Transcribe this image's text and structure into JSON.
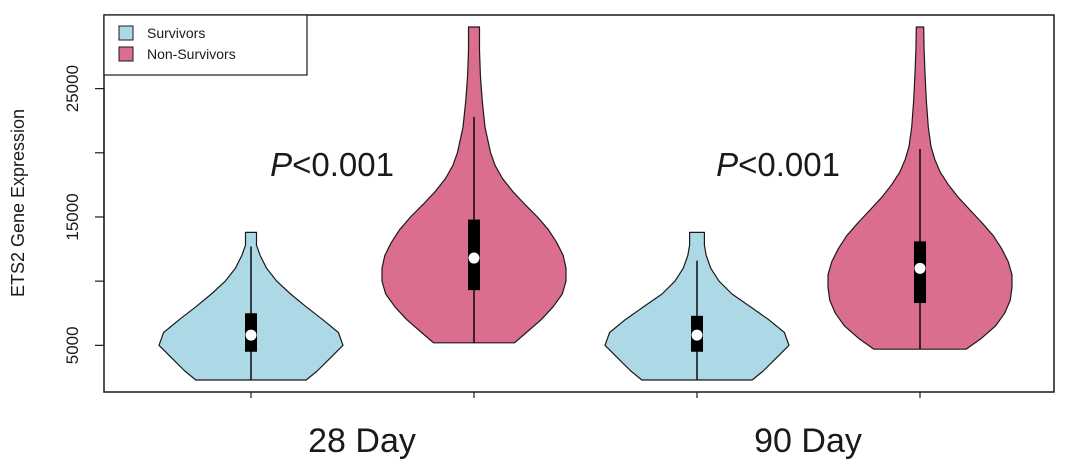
{
  "chart_data": {
    "type": "violin",
    "title": "",
    "xlabel": "",
    "ylabel": "ETS2 Gene Expression",
    "ylim": [
      2300,
      29800
    ],
    "y_ticks": [
      5000,
      15000,
      25000
    ],
    "y_tick_labels": [
      "5000",
      "15000",
      "25000"
    ],
    "categories": [
      "28 Day",
      "90 Day"
    ],
    "colors": {
      "Survivors": "#add8e6",
      "Non-Survivors": "#db6d8f"
    },
    "legend": {
      "position": "top-left",
      "entries": [
        {
          "label": "Survivors",
          "color": "#add8e6"
        },
        {
          "label": "Non-Survivors",
          "color": "#db6d8f"
        }
      ]
    },
    "annotations": [
      {
        "group": "28 Day",
        "italic": "P",
        "text": "<0.001"
      },
      {
        "group": "90 Day",
        "italic": "P",
        "text": "<0.001"
      }
    ],
    "violins": [
      {
        "group": "28 Day",
        "series": "Survivors",
        "min": 2300,
        "q1": 4500,
        "median": 5800,
        "q3": 7500,
        "max": 13800,
        "whisker_low": 2300,
        "whisker_high": 12700,
        "density": [
          [
            2300,
            0.6
          ],
          [
            3000,
            0.72
          ],
          [
            4000,
            0.86
          ],
          [
            5000,
            1.0
          ],
          [
            6000,
            0.95
          ],
          [
            7000,
            0.78
          ],
          [
            8000,
            0.6
          ],
          [
            9000,
            0.43
          ],
          [
            10000,
            0.28
          ],
          [
            11000,
            0.17
          ],
          [
            12000,
            0.1
          ],
          [
            12800,
            0.06
          ],
          [
            13800,
            0.06
          ]
        ]
      },
      {
        "group": "28 Day",
        "series": "Non-Survivors",
        "min": 5200,
        "q1": 9300,
        "median": 11800,
        "q3": 14800,
        "max": 29800,
        "whisker_low": 5200,
        "whisker_high": 22800,
        "density": [
          [
            5200,
            0.44
          ],
          [
            6000,
            0.57
          ],
          [
            7000,
            0.73
          ],
          [
            8000,
            0.86
          ],
          [
            9000,
            0.96
          ],
          [
            10000,
            1.0
          ],
          [
            11000,
            1.0
          ],
          [
            12000,
            0.97
          ],
          [
            13000,
            0.9
          ],
          [
            14000,
            0.81
          ],
          [
            15000,
            0.69
          ],
          [
            16000,
            0.55
          ],
          [
            17000,
            0.42
          ],
          [
            18000,
            0.31
          ],
          [
            19000,
            0.23
          ],
          [
            20000,
            0.18
          ],
          [
            21000,
            0.15
          ],
          [
            22000,
            0.12
          ],
          [
            24000,
            0.09
          ],
          [
            26000,
            0.07
          ],
          [
            28000,
            0.06
          ],
          [
            29800,
            0.06
          ]
        ]
      },
      {
        "group": "90 Day",
        "series": "Survivors",
        "min": 2300,
        "q1": 4500,
        "median": 5800,
        "q3": 7300,
        "max": 13800,
        "whisker_low": 2300,
        "whisker_high": 11600,
        "density": [
          [
            2300,
            0.6
          ],
          [
            3000,
            0.72
          ],
          [
            4000,
            0.86
          ],
          [
            5000,
            1.0
          ],
          [
            6000,
            0.95
          ],
          [
            7000,
            0.78
          ],
          [
            8000,
            0.58
          ],
          [
            9000,
            0.38
          ],
          [
            10000,
            0.24
          ],
          [
            11000,
            0.15
          ],
          [
            12000,
            0.1
          ],
          [
            12800,
            0.08
          ],
          [
            13800,
            0.08
          ]
        ]
      },
      {
        "group": "90 Day",
        "series": "Non-Survivors",
        "min": 4700,
        "q1": 8300,
        "median": 11000,
        "q3": 13100,
        "max": 29800,
        "whisker_low": 4700,
        "whisker_high": 20300,
        "density": [
          [
            4700,
            0.5
          ],
          [
            5500,
            0.66
          ],
          [
            6500,
            0.82
          ],
          [
            7500,
            0.92
          ],
          [
            8500,
            0.98
          ],
          [
            9500,
            1.0
          ],
          [
            10500,
            1.0
          ],
          [
            11500,
            0.96
          ],
          [
            12500,
            0.89
          ],
          [
            13500,
            0.8
          ],
          [
            14500,
            0.68
          ],
          [
            15500,
            0.55
          ],
          [
            16500,
            0.42
          ],
          [
            17500,
            0.31
          ],
          [
            18500,
            0.22
          ],
          [
            19500,
            0.16
          ],
          [
            20500,
            0.12
          ],
          [
            22000,
            0.09
          ],
          [
            24000,
            0.07
          ],
          [
            26000,
            0.055
          ],
          [
            28000,
            0.045
          ],
          [
            29800,
            0.04
          ]
        ]
      }
    ]
  }
}
